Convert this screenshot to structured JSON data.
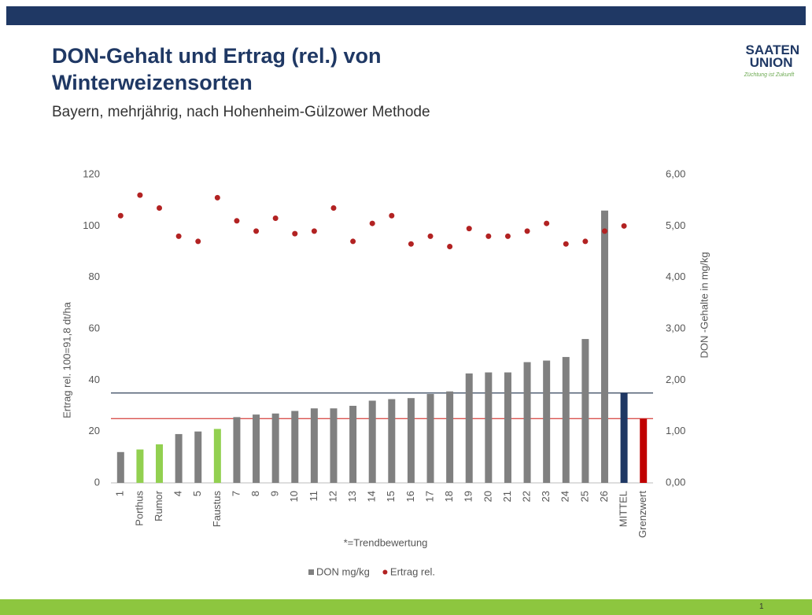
{
  "header": {
    "title": "DON-Gehalt und Ertrag (rel.) von Winterweizensorten",
    "subtitle": "Bayern, mehrjährig, nach Hohenheim-Gülzower Methode",
    "logo": "SAATEN UNION",
    "logo_tagline": "Züchtung ist Zukunft",
    "page_number": "1"
  },
  "chart_data": {
    "type": "bar",
    "categories": [
      "1",
      "Porthus",
      "Rumor",
      "4",
      "5",
      "Faustus",
      "7",
      "8",
      "9",
      "10",
      "11",
      "12",
      "13",
      "14",
      "15",
      "16",
      "17",
      "18",
      "19",
      "20",
      "21",
      "22",
      "23",
      "24",
      "25",
      "26",
      "MITTEL",
      "Grenzwert"
    ],
    "series": [
      {
        "name": "DON mg/kg",
        "type": "bar",
        "axis": "y2",
        "color": "#808080",
        "colors": [
          "#808080",
          "#92d050",
          "#92d050",
          "#808080",
          "#808080",
          "#92d050",
          "#808080",
          "#808080",
          "#808080",
          "#808080",
          "#808080",
          "#808080",
          "#808080",
          "#808080",
          "#808080",
          "#808080",
          "#808080",
          "#808080",
          "#808080",
          "#808080",
          "#808080",
          "#808080",
          "#808080",
          "#808080",
          "#808080",
          "#808080",
          "#1f3864",
          "#c00000"
        ],
        "values": [
          0.6,
          0.65,
          0.75,
          0.95,
          1.0,
          1.05,
          1.28,
          1.33,
          1.35,
          1.4,
          1.45,
          1.45,
          1.5,
          1.6,
          1.63,
          1.65,
          1.73,
          1.78,
          2.13,
          2.15,
          2.15,
          2.35,
          2.38,
          2.45,
          2.8,
          5.3,
          1.75,
          1.25
        ]
      },
      {
        "name": "Ertrag rel.",
        "type": "scatter",
        "color": "#b22222",
        "values": [
          104,
          112,
          107,
          96,
          94,
          111,
          102,
          98,
          103,
          97,
          98,
          107,
          94,
          101,
          104,
          93,
          96,
          92,
          99,
          96,
          96,
          98,
          101,
          93,
          94,
          98,
          100,
          null
        ]
      }
    ],
    "reference_lines": [
      {
        "value": 1.75,
        "axis": "y2",
        "color": "#44546a"
      },
      {
        "value": 1.25,
        "axis": "y2",
        "color": "#d9534f"
      }
    ],
    "ylim": [
      0,
      120
    ],
    "yticks": [
      0,
      20,
      40,
      60,
      80,
      100,
      120
    ],
    "y2lim": [
      0,
      6
    ],
    "y2ticks": [
      {
        "value": 0,
        "label": "0,00"
      },
      {
        "value": 1,
        "label": "1,00"
      },
      {
        "value": 2,
        "label": "2,00"
      },
      {
        "value": 3,
        "label": "3,00"
      },
      {
        "value": 4,
        "label": "4,00"
      },
      {
        "value": 5,
        "label": "5,00"
      },
      {
        "value": 6,
        "label": "6,00"
      }
    ],
    "ylabel": "Ertrag rel. 100=91,8 dt/ha",
    "y2label": "DON -Gehalte in mg/kg",
    "annotation": "*=Trendbewertung",
    "grid": false
  }
}
